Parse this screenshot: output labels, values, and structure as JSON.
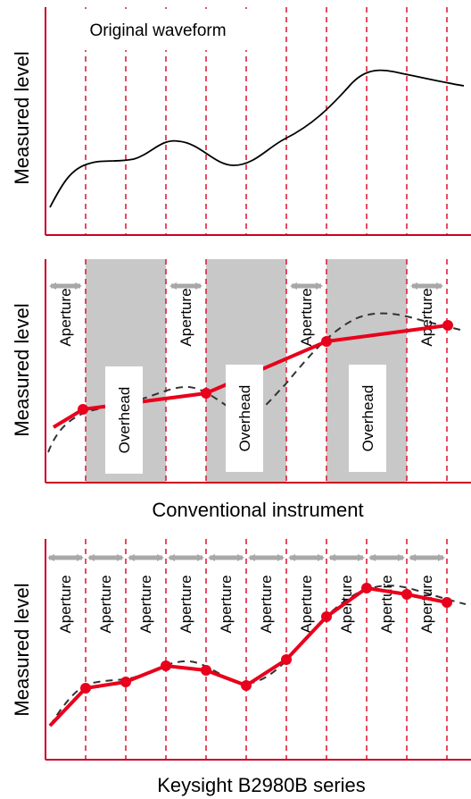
{
  "panel1": {
    "title": "Original waveform",
    "ylabel": "Measured level"
  },
  "panel2": {
    "ylabel": "Measured level",
    "caption": "Conventional instrument",
    "aperture_label": "Aperture",
    "overhead_label": "Overhead"
  },
  "panel3": {
    "ylabel": "Measured level",
    "caption": "Keysight B2980B series",
    "aperture_label": "Aperture"
  },
  "colors": {
    "axis": "#cc0022",
    "grid": "#e0203a",
    "measured_line": "#e8001c",
    "overhead_fill": "#c8c8c8",
    "arrow": "#a8a8a8",
    "waveform": "#000000"
  }
}
